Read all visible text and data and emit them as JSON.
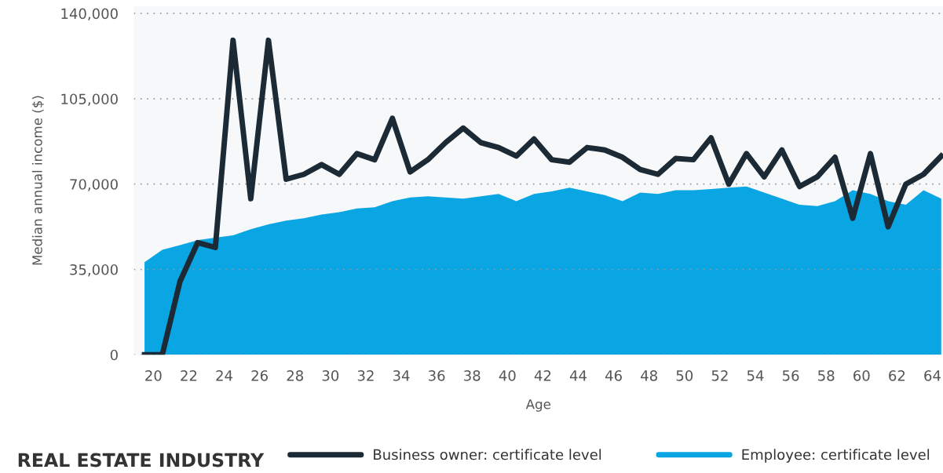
{
  "chart_data": {
    "type": "line",
    "title": "REAL ESTATE INDUSTRY",
    "xlabel": "Age",
    "ylabel": "Median annual income ($)",
    "xlim": [
      18.9,
      64.6
    ],
    "xticks": [
      20,
      22,
      24,
      26,
      28,
      30,
      32,
      34,
      36,
      38,
      40,
      42,
      44,
      46,
      48,
      50,
      52,
      54,
      56,
      58,
      60,
      62,
      64
    ],
    "ylim": [
      0,
      143000
    ],
    "yticks": [
      {
        "value": 0,
        "label": "0"
      },
      {
        "value": 35000,
        "label": "35,000"
      },
      {
        "value": 70000,
        "label": "70,000"
      },
      {
        "value": 105000,
        "label": "105,000"
      },
      {
        "value": 140000,
        "label": "140,000"
      }
    ],
    "x": [
      19.5,
      20.5,
      21.5,
      22.5,
      23.5,
      24.5,
      25.5,
      26.5,
      27.5,
      28.5,
      29.5,
      30.5,
      31.5,
      32.5,
      33.5,
      34.5,
      35.5,
      36.5,
      37.5,
      38.5,
      39.5,
      40.5,
      41.5,
      42.5,
      43.5,
      44.5,
      45.5,
      46.5,
      47.5,
      48.5,
      49.5,
      50.5,
      51.5,
      52.5,
      53.5,
      54.5,
      55.5,
      56.5,
      57.5,
      58.5,
      59.5,
      60.5,
      61.5,
      62.5,
      63.5,
      64.5
    ],
    "series": [
      {
        "name": "Business owner: certificate level",
        "color": "#1c2a35",
        "values": [
          0,
          0,
          30000,
          46000,
          44000,
          129000,
          64000,
          129000,
          72000,
          74000,
          78000,
          74000,
          82500,
          80000,
          97000,
          75000,
          80000,
          87000,
          93000,
          87000,
          85000,
          81500,
          88500,
          80000,
          79000,
          85000,
          84000,
          81000,
          76000,
          74000,
          80500,
          80000,
          89000,
          70000,
          82500,
          73000,
          84000,
          69000,
          73000,
          81000,
          56000,
          82500,
          52500,
          70000,
          74000,
          81500
        ]
      },
      {
        "name": "Employee: certificate level",
        "type": "area",
        "color": "#0aa5e3",
        "values": [
          38000,
          43000,
          45000,
          47000,
          48000,
          49000,
          51500,
          53500,
          55000,
          56000,
          57500,
          58500,
          60000,
          60500,
          63000,
          64500,
          65000,
          64500,
          64000,
          65000,
          66000,
          63000,
          66000,
          67000,
          68500,
          67000,
          65500,
          63000,
          66500,
          66000,
          67500,
          67500,
          68000,
          68500,
          69000,
          66500,
          64000,
          61500,
          61000,
          63000,
          67500,
          66000,
          63000,
          61500,
          67500,
          64000
        ]
      }
    ],
    "grid": "y",
    "legend": "bottom",
    "line_style": "solid",
    "marker": "none"
  }
}
